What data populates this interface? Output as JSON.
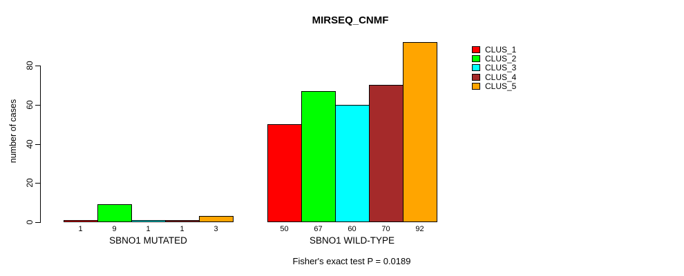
{
  "chart_data": {
    "type": "bar",
    "title": "MIRSEQ_CNMF",
    "ylabel": "number of cases",
    "xlabel": "",
    "yticks": [
      0,
      20,
      40,
      60,
      80
    ],
    "ylim": [
      0,
      92
    ],
    "grid": false,
    "legend_position": "right-outside",
    "bar_value_labels": true,
    "annotation": "Fisher's exact test P = 0.0189",
    "categories": [
      "SBNO1 MUTATED",
      "SBNO1 WILD-TYPE"
    ],
    "series": [
      {
        "name": "CLUS_1",
        "color": "#FF0000",
        "values": [
          1,
          50
        ]
      },
      {
        "name": "CLUS_2",
        "color": "#00FF00",
        "values": [
          9,
          67
        ]
      },
      {
        "name": "CLUS_3",
        "color": "#00FFFF",
        "values": [
          1,
          60
        ]
      },
      {
        "name": "CLUS_4",
        "color": "#A52A2A",
        "values": [
          1,
          70
        ]
      },
      {
        "name": "CLUS_5",
        "color": "#FFA500",
        "values": [
          3,
          92
        ]
      }
    ]
  },
  "colors": {
    "axis": "#000000",
    "background": "#ffffff",
    "text": "#000000"
  }
}
